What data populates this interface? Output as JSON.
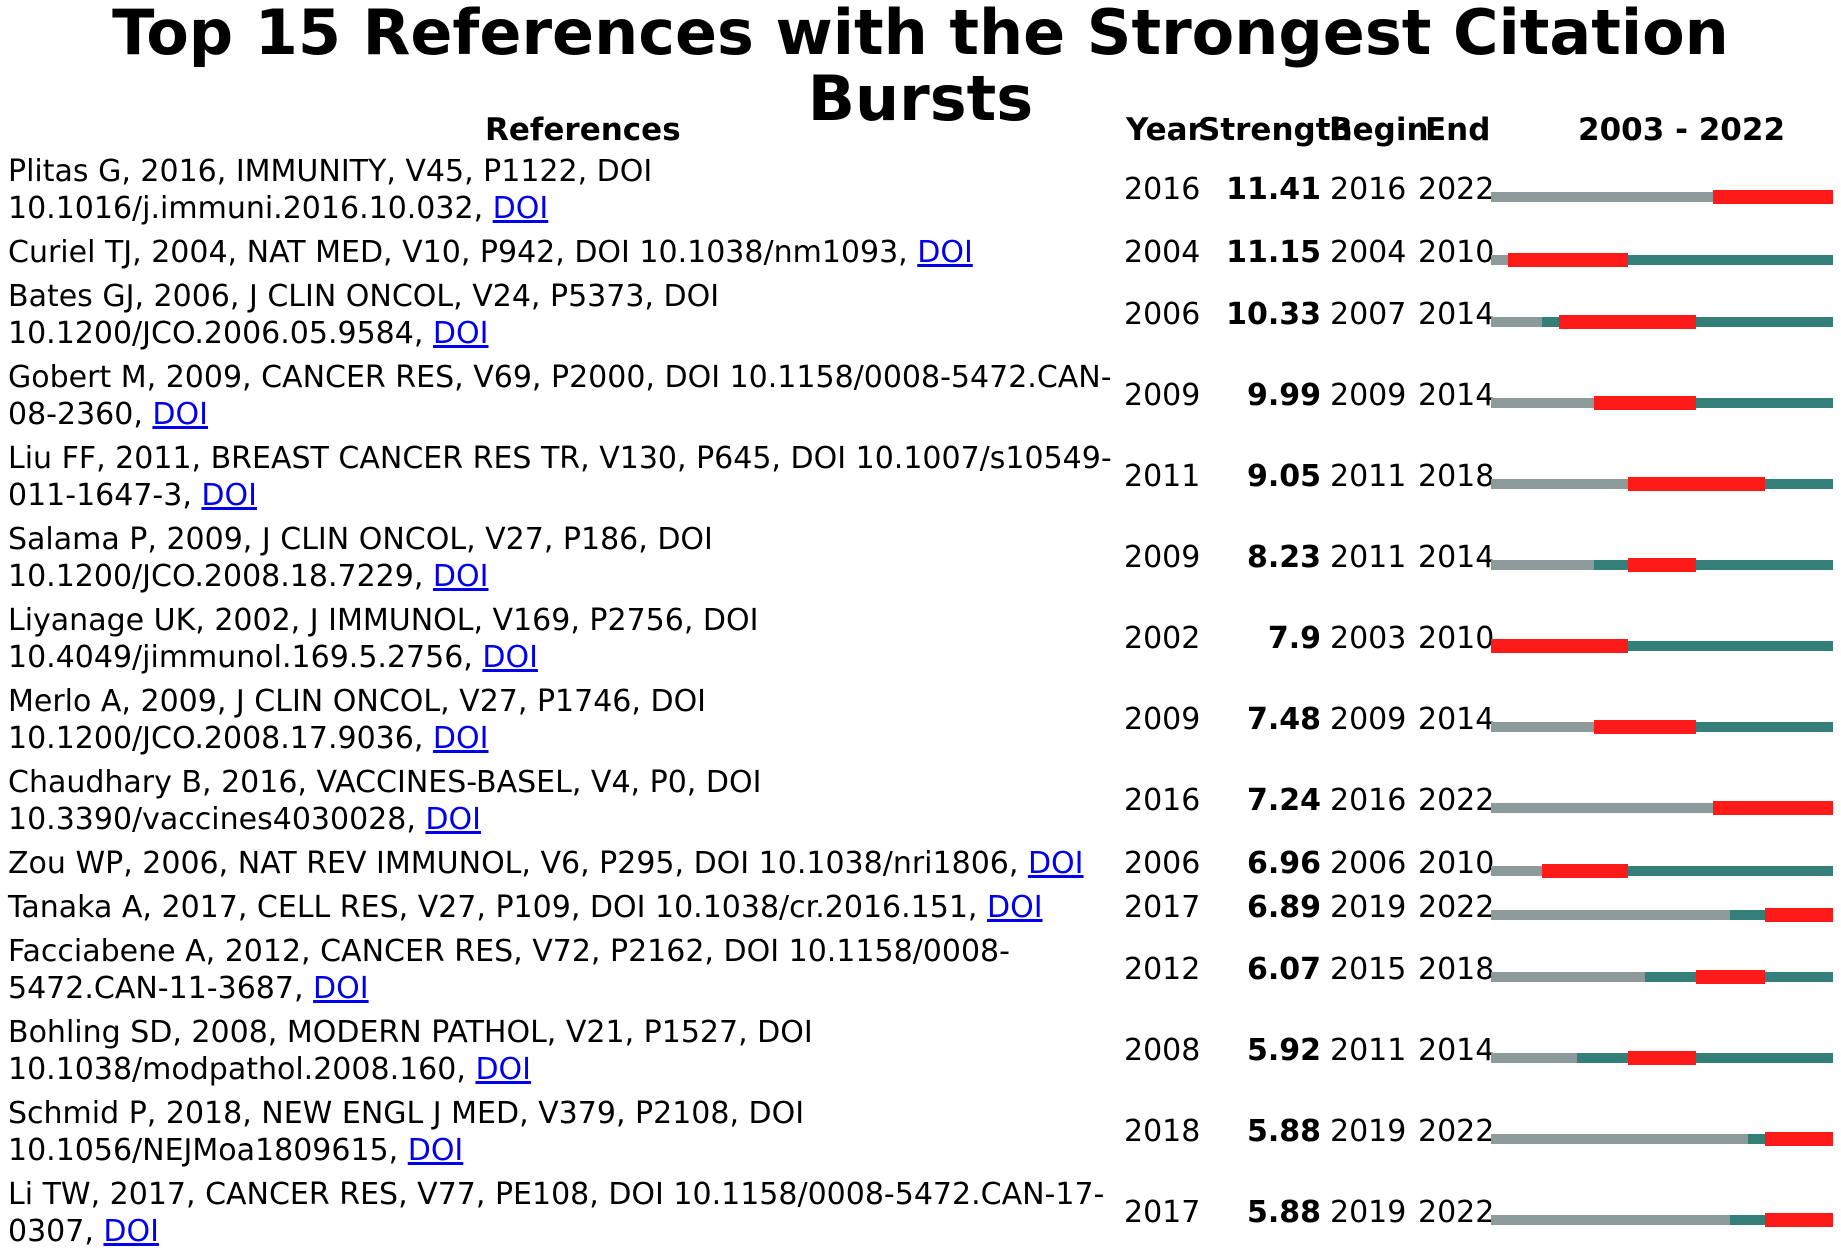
{
  "chart_data": {
    "type": "table",
    "title": "Top 15 References with the Strongest Citation Bursts",
    "columns": [
      "References",
      "Year",
      "Strength",
      "Begin",
      "End",
      "2003 - 2022"
    ],
    "timeline_start": 2003,
    "timeline_end": 2022,
    "colors": {
      "pre_publication": "#8c9a9a",
      "post_publication": "#347f7a",
      "burst": "#ff1a1a"
    },
    "rows": [
      {
        "ref": "Plitas G, 2016, IMMUNITY, V45, P1122, DOI 10.1016/j.immuni.2016.10.032,",
        "link": "DOI",
        "year": 2016,
        "strength": "11.41",
        "begin": 2016,
        "end": 2022
      },
      {
        "ref": "Curiel TJ, 2004, NAT MED, V10, P942, DOI 10.1038/nm1093,",
        "link": "DOI",
        "year": 2004,
        "strength": "11.15",
        "begin": 2004,
        "end": 2010
      },
      {
        "ref": "Bates GJ, 2006, J CLIN ONCOL, V24, P5373, DOI 10.1200/JCO.2006.05.9584,",
        "link": "DOI",
        "year": 2006,
        "strength": "10.33",
        "begin": 2007,
        "end": 2014
      },
      {
        "ref": "Gobert M, 2009, CANCER RES, V69, P2000, DOI 10.1158/0008-5472.CAN-08-2360,",
        "link": "DOI",
        "year": 2009,
        "strength": "9.99",
        "begin": 2009,
        "end": 2014
      },
      {
        "ref": "Liu FF, 2011, BREAST CANCER RES TR, V130, P645, DOI 10.1007/s10549-011-1647-3,",
        "link": "DOI",
        "year": 2011,
        "strength": "9.05",
        "begin": 2011,
        "end": 2018
      },
      {
        "ref": "Salama P, 2009, J CLIN ONCOL, V27, P186, DOI 10.1200/JCO.2008.18.7229,",
        "link": "DOI",
        "year": 2009,
        "strength": "8.23",
        "begin": 2011,
        "end": 2014
      },
      {
        "ref": "Liyanage UK, 2002, J IMMUNOL, V169, P2756, DOI 10.4049/jimmunol.169.5.2756,",
        "link": "DOI",
        "year": 2002,
        "strength": "7.9",
        "begin": 2003,
        "end": 2010
      },
      {
        "ref": "Merlo A, 2009, J CLIN ONCOL, V27, P1746, DOI 10.1200/JCO.2008.17.9036,",
        "link": "DOI",
        "year": 2009,
        "strength": "7.48",
        "begin": 2009,
        "end": 2014
      },
      {
        "ref": "Chaudhary B, 2016, VACCINES-BASEL, V4, P0, DOI 10.3390/vaccines4030028,",
        "link": "DOI",
        "year": 2016,
        "strength": "7.24",
        "begin": 2016,
        "end": 2022
      },
      {
        "ref": "Zou WP, 2006, NAT REV IMMUNOL, V6, P295, DOI 10.1038/nri1806,",
        "link": "DOI",
        "year": 2006,
        "strength": "6.96",
        "begin": 2006,
        "end": 2010
      },
      {
        "ref": "Tanaka A, 2017, CELL RES, V27, P109, DOI 10.1038/cr.2016.151,",
        "link": "DOI",
        "year": 2017,
        "strength": "6.89",
        "begin": 2019,
        "end": 2022
      },
      {
        "ref": "Facciabene A, 2012, CANCER RES, V72, P2162, DOI 10.1158/0008-5472.CAN-11-3687,",
        "link": "DOI",
        "year": 2012,
        "strength": "6.07",
        "begin": 2015,
        "end": 2018
      },
      {
        "ref": "Bohling SD, 2008, MODERN PATHOL, V21, P1527, DOI 10.1038/modpathol.2008.160,",
        "link": "DOI",
        "year": 2008,
        "strength": "5.92",
        "begin": 2011,
        "end": 2014
      },
      {
        "ref": "Schmid P, 2018, NEW ENGL J MED, V379, P2108, DOI 10.1056/NEJMoa1809615,",
        "link": "DOI",
        "year": 2018,
        "strength": "5.88",
        "begin": 2019,
        "end": 2022
      },
      {
        "ref": "Li TW, 2017, CANCER RES, V77, PE108, DOI 10.1158/0008-5472.CAN-17-0307,",
        "link": "DOI",
        "year": 2017,
        "strength": "5.88",
        "begin": 2019,
        "end": 2022
      }
    ]
  }
}
